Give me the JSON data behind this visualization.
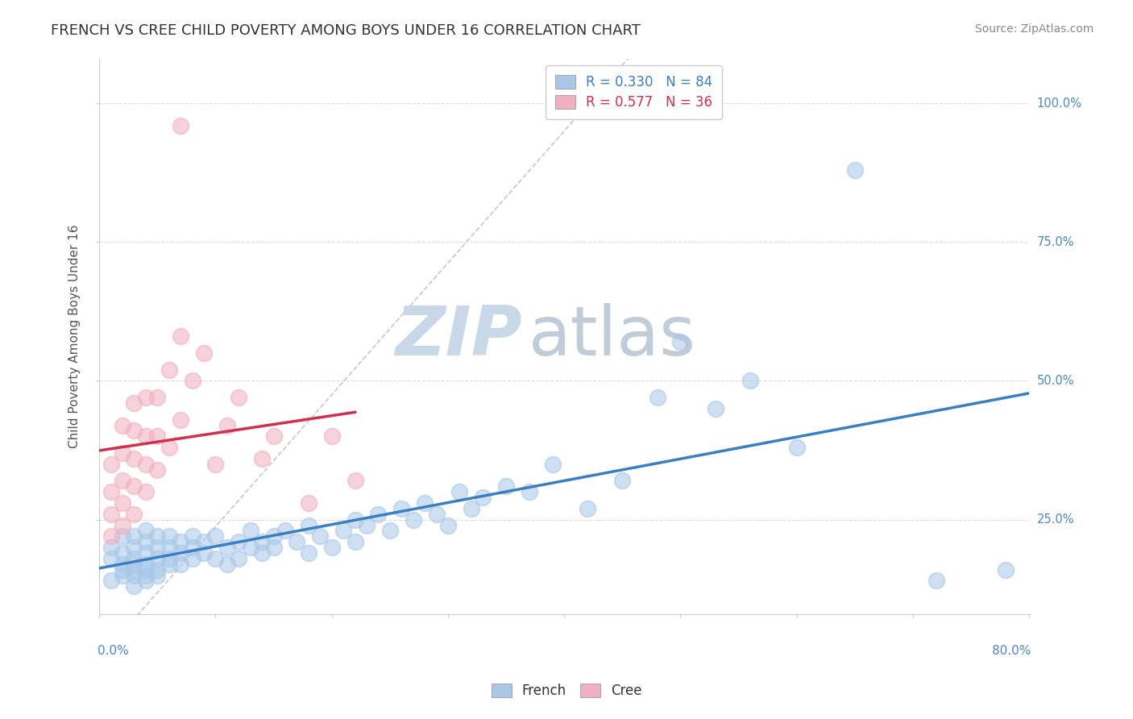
{
  "title": "FRENCH VS CREE CHILD POVERTY AMONG BOYS UNDER 16 CORRELATION CHART",
  "source": "Source: ZipAtlas.com",
  "ylabel": "Child Poverty Among Boys Under 16",
  "xlim": [
    0.0,
    0.8
  ],
  "ylim": [
    0.08,
    1.08
  ],
  "french_R": 0.33,
  "french_N": 84,
  "cree_R": 0.577,
  "cree_N": 36,
  "french_color": "#a8c8e8",
  "cree_color": "#f0b0c0",
  "french_line_color": "#3a7fc1",
  "cree_line_color": "#d03050",
  "ref_line_color": "#c8c8c8",
  "watermark_zip_color": "#c8d8e8",
  "watermark_atlas_color": "#c0ccd8",
  "title_color": "#333333",
  "source_color": "#888888",
  "right_label_color": "#4a88c8",
  "ytick_values": [
    0.25,
    0.5,
    0.75,
    1.0
  ],
  "ytick_labels": [
    "25.0%",
    "50.0%",
    "75.0%",
    "100.0%"
  ],
  "french_scatter_x": [
    0.01,
    0.01,
    0.01,
    0.02,
    0.02,
    0.02,
    0.02,
    0.02,
    0.03,
    0.03,
    0.03,
    0.03,
    0.03,
    0.03,
    0.03,
    0.04,
    0.04,
    0.04,
    0.04,
    0.04,
    0.04,
    0.04,
    0.05,
    0.05,
    0.05,
    0.05,
    0.05,
    0.06,
    0.06,
    0.06,
    0.06,
    0.07,
    0.07,
    0.07,
    0.08,
    0.08,
    0.08,
    0.09,
    0.09,
    0.1,
    0.1,
    0.11,
    0.11,
    0.12,
    0.12,
    0.13,
    0.13,
    0.14,
    0.14,
    0.15,
    0.15,
    0.16,
    0.17,
    0.18,
    0.18,
    0.19,
    0.2,
    0.21,
    0.22,
    0.22,
    0.23,
    0.24,
    0.25,
    0.26,
    0.27,
    0.28,
    0.29,
    0.3,
    0.31,
    0.32,
    0.33,
    0.35,
    0.37,
    0.39,
    0.42,
    0.45,
    0.48,
    0.5,
    0.53,
    0.56,
    0.6,
    0.65,
    0.72,
    0.78
  ],
  "french_scatter_y": [
    0.18,
    0.2,
    0.14,
    0.16,
    0.19,
    0.22,
    0.15,
    0.17,
    0.13,
    0.16,
    0.18,
    0.2,
    0.22,
    0.15,
    0.17,
    0.14,
    0.16,
    0.19,
    0.21,
    0.23,
    0.17,
    0.15,
    0.16,
    0.18,
    0.2,
    0.22,
    0.15,
    0.17,
    0.2,
    0.22,
    0.18,
    0.19,
    0.21,
    0.17,
    0.2,
    0.18,
    0.22,
    0.19,
    0.21,
    0.18,
    0.22,
    0.2,
    0.17,
    0.21,
    0.18,
    0.2,
    0.23,
    0.21,
    0.19,
    0.22,
    0.2,
    0.23,
    0.21,
    0.19,
    0.24,
    0.22,
    0.2,
    0.23,
    0.25,
    0.21,
    0.24,
    0.26,
    0.23,
    0.27,
    0.25,
    0.28,
    0.26,
    0.24,
    0.3,
    0.27,
    0.29,
    0.31,
    0.3,
    0.35,
    0.27,
    0.32,
    0.47,
    0.57,
    0.45,
    0.5,
    0.38,
    0.88,
    0.14,
    0.16
  ],
  "cree_scatter_x": [
    0.01,
    0.01,
    0.01,
    0.01,
    0.02,
    0.02,
    0.02,
    0.02,
    0.02,
    0.03,
    0.03,
    0.03,
    0.03,
    0.03,
    0.04,
    0.04,
    0.04,
    0.04,
    0.05,
    0.05,
    0.05,
    0.06,
    0.06,
    0.07,
    0.07,
    0.08,
    0.09,
    0.1,
    0.11,
    0.12,
    0.14,
    0.15,
    0.18,
    0.2,
    0.22,
    0.07
  ],
  "cree_scatter_y": [
    0.22,
    0.26,
    0.3,
    0.35,
    0.24,
    0.28,
    0.32,
    0.37,
    0.42,
    0.26,
    0.31,
    0.36,
    0.41,
    0.46,
    0.3,
    0.35,
    0.4,
    0.47,
    0.34,
    0.4,
    0.47,
    0.38,
    0.52,
    0.43,
    0.58,
    0.5,
    0.55,
    0.35,
    0.42,
    0.47,
    0.36,
    0.4,
    0.28,
    0.4,
    0.32,
    0.96
  ]
}
